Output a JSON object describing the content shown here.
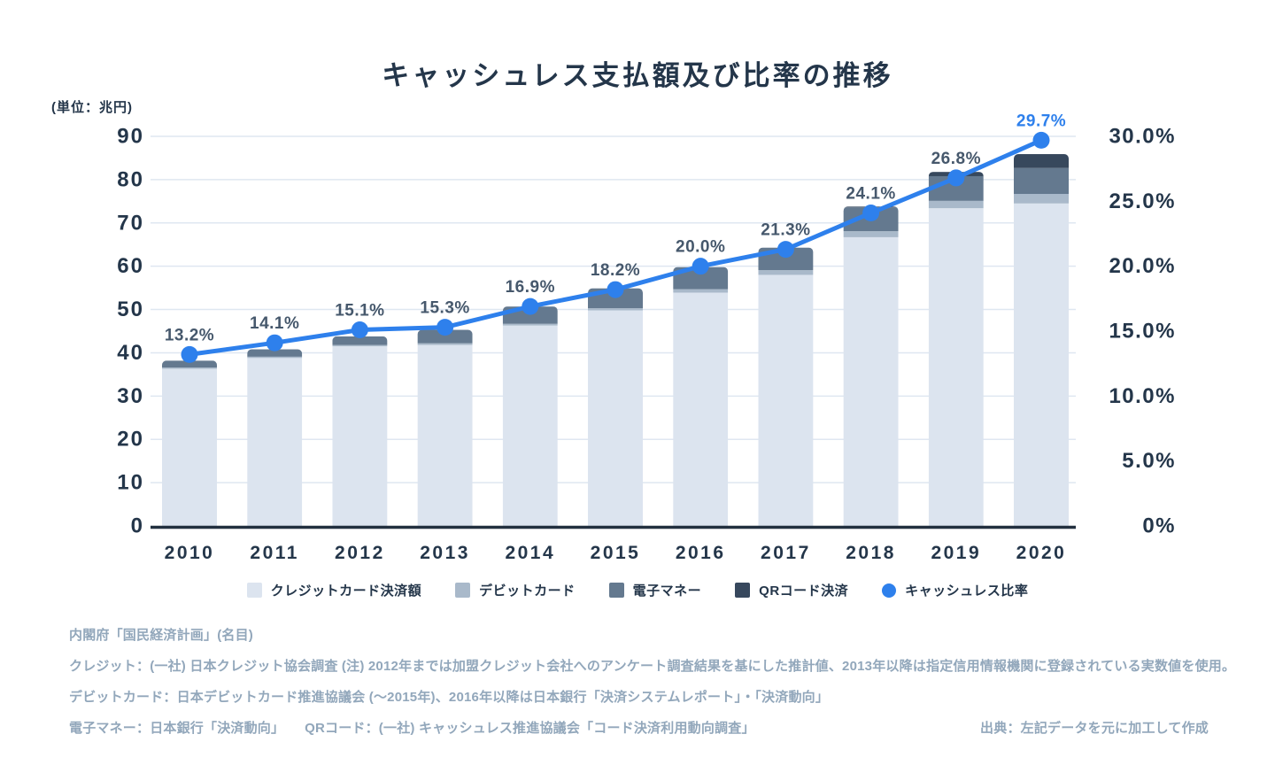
{
  "title": "キャッシュレス支払額及び比率の推移",
  "unit_label": "(単位：兆円)",
  "chart_data": {
    "type": "bar",
    "subtype": "stacked-bar-with-line",
    "categories": [
      "2010",
      "2011",
      "2012",
      "2013",
      "2014",
      "2015",
      "2016",
      "2017",
      "2018",
      "2019",
      "2020"
    ],
    "series": [
      {
        "name": "クレジットカード決済額",
        "color": "#dce4ef",
        "values": [
          36.3,
          38.8,
          41.5,
          41.8,
          46.3,
          49.8,
          53.9,
          58.0,
          66.7,
          73.4,
          74.5
        ]
      },
      {
        "name": "デビットカード",
        "color": "#a9b9ca",
        "values": [
          0.3,
          0.3,
          0.3,
          0.4,
          0.4,
          0.5,
          0.8,
          1.1,
          1.4,
          1.7,
          2.2
        ]
      },
      {
        "name": "電子マネー",
        "color": "#64798f",
        "values": [
          1.6,
          1.7,
          2.0,
          3.1,
          4.0,
          4.6,
          5.1,
          5.2,
          5.5,
          5.7,
          6.0
        ]
      },
      {
        "name": "QRコード決済",
        "color": "#37485d",
        "values": [
          0,
          0,
          0,
          0,
          0,
          0,
          0,
          0,
          0.2,
          1.0,
          3.2
        ]
      }
    ],
    "line_series": {
      "name": "キャッシュレス比率",
      "color": "#2e80ec",
      "values": [
        13.2,
        14.1,
        15.1,
        15.3,
        16.9,
        18.2,
        20.0,
        21.3,
        24.1,
        26.8,
        29.7
      ],
      "labels": [
        "13.2%",
        "14.1%",
        "15.1%",
        "15.3%",
        "16.9%",
        "18.2%",
        "20.0%",
        "21.3%",
        "24.1%",
        "26.8%",
        "29.7%"
      ],
      "label_color": "#46586c",
      "last_label_color": "#2e80ec"
    },
    "left_axis": {
      "ticks": [
        "0",
        "10",
        "20",
        "30",
        "40",
        "50",
        "60",
        "70",
        "80",
        "90"
      ],
      "tick_values": [
        0,
        10,
        20,
        30,
        40,
        50,
        60,
        70,
        80,
        90
      ],
      "min": 0,
      "max": 90,
      "unit": "兆円"
    },
    "right_axis": {
      "ticks": [
        "0%",
        "5.0%",
        "10.0%",
        "15.0%",
        "20.0%",
        "25.0%",
        "30.0%"
      ],
      "tick_values": [
        0,
        5,
        10,
        15,
        20,
        25,
        30
      ],
      "min": 0,
      "max": 30
    },
    "grid": "horizontal",
    "legend_position": "bottom"
  },
  "legend": [
    {
      "label": "クレジットカード決済額",
      "swatch": "square",
      "color": "#dce4ef"
    },
    {
      "label": "デビットカード",
      "swatch": "square",
      "color": "#a9b9ca"
    },
    {
      "label": "電子マネー",
      "swatch": "square",
      "color": "#64798f"
    },
    {
      "label": "QRコード決済",
      "swatch": "square",
      "color": "#37485d"
    },
    {
      "label": "キャッシュレス比率",
      "swatch": "circle",
      "color": "#2e80ec"
    }
  ],
  "footnotes": [
    "内閣府「国民経済計画」(名目)",
    "クレジット：(一社) 日本クレジット協会調査 (注) 2012年までは加盟クレジット会社へのアンケート調査結果を基にした推計値、2013年以降は指定信用情報機関に登録されている実数値を使用。",
    "デビットカード：日本デビットカード推進協議会 (～2015年)、2016年以降は日本銀行「決済システムレポート」・「決済動向」",
    "電子マネー：日本銀行「決済動向」　　QRコード：(一社) キャッシュレス推進協議会「コード決済利用動向調査」"
  ],
  "source": "出典：左記データを元に加工して作成",
  "colors": {
    "title_text": "#24364a",
    "axis_text": "#24364a",
    "gridline": "#dfe7f1",
    "axis_line": "#22303f",
    "footnote_text": "#92a7bb",
    "line": "#2e80ec"
  }
}
